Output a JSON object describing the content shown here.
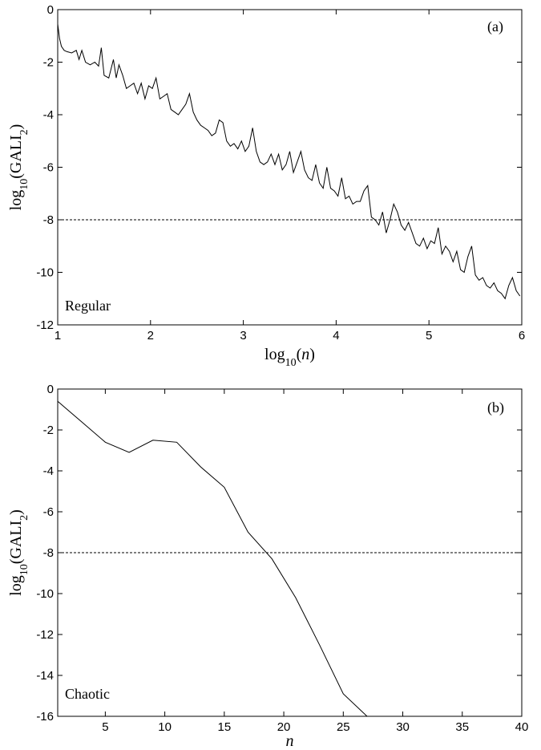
{
  "chart_data": [
    {
      "type": "line",
      "panel_label": "(a)",
      "annotation": "Regular",
      "xlabel_parts": [
        "log",
        "10",
        "(",
        "n",
        ")"
      ],
      "ylabel_parts": [
        "log",
        "10",
        "(GALI",
        "2",
        ")"
      ],
      "xlim": [
        1,
        6
      ],
      "ylim": [
        -12,
        0
      ],
      "x_ticks": [
        1,
        2,
        3,
        4,
        5,
        6
      ],
      "y_ticks": [
        0,
        -2,
        -4,
        -6,
        -8,
        -10,
        -12
      ],
      "x_tick_labels": [
        "1",
        "2",
        "3",
        "4",
        "5",
        "6"
      ],
      "y_tick_labels": [
        "0",
        "-2",
        "-4",
        "-6",
        "-8",
        "-10",
        "-12"
      ],
      "threshold": -8,
      "grid": false,
      "series": [
        {
          "x": [
            1.0,
            1.02,
            1.04,
            1.07,
            1.1,
            1.15,
            1.2,
            1.23,
            1.26,
            1.3,
            1.35,
            1.4,
            1.44,
            1.47,
            1.5,
            1.55,
            1.6,
            1.63,
            1.66,
            1.7,
            1.74,
            1.78,
            1.82,
            1.86,
            1.9,
            1.94,
            1.98,
            2.02,
            2.06,
            2.1,
            2.14,
            2.18,
            2.22,
            2.26,
            2.3,
            2.34,
            2.38,
            2.42,
            2.46,
            2.5,
            2.54,
            2.58,
            2.62,
            2.66,
            2.7,
            2.74,
            2.78,
            2.82,
            2.86,
            2.9,
            2.94,
            2.98,
            3.02,
            3.06,
            3.1,
            3.14,
            3.18,
            3.22,
            3.26,
            3.3,
            3.34,
            3.38,
            3.42,
            3.46,
            3.5,
            3.54,
            3.58,
            3.62,
            3.66,
            3.7,
            3.74,
            3.78,
            3.82,
            3.86,
            3.9,
            3.94,
            3.98,
            4.02,
            4.06,
            4.1,
            4.14,
            4.18,
            4.22,
            4.26,
            4.3,
            4.34,
            4.38,
            4.42,
            4.46,
            4.5,
            4.54,
            4.58,
            4.62,
            4.66,
            4.7,
            4.74,
            4.78,
            4.82,
            4.86,
            4.9,
            4.94,
            4.98,
            5.02,
            5.06,
            5.1,
            5.14,
            5.18,
            5.22,
            5.26,
            5.3,
            5.34,
            5.38,
            5.42,
            5.46,
            5.5,
            5.54,
            5.58,
            5.62,
            5.66,
            5.7,
            5.74,
            5.78,
            5.82,
            5.86,
            5.9,
            5.94,
            5.98
          ],
          "y": [
            -0.55,
            -1.1,
            -1.4,
            -1.55,
            -1.6,
            -1.65,
            -1.55,
            -1.9,
            -1.55,
            -2.0,
            -2.1,
            -2.0,
            -2.15,
            -1.45,
            -2.5,
            -2.6,
            -1.9,
            -2.6,
            -2.1,
            -2.5,
            -3.0,
            -2.9,
            -2.8,
            -3.2,
            -2.8,
            -3.4,
            -2.9,
            -3.0,
            -2.6,
            -3.4,
            -3.3,
            -3.2,
            -3.8,
            -3.9,
            -4.0,
            -3.8,
            -3.6,
            -3.2,
            -3.9,
            -4.2,
            -4.4,
            -4.5,
            -4.6,
            -4.8,
            -4.7,
            -4.2,
            -4.3,
            -5.0,
            -5.2,
            -5.1,
            -5.3,
            -5.0,
            -5.4,
            -5.2,
            -4.5,
            -5.4,
            -5.8,
            -5.9,
            -5.8,
            -5.5,
            -5.9,
            -5.5,
            -6.1,
            -5.9,
            -5.4,
            -6.2,
            -5.8,
            -5.4,
            -6.1,
            -6.4,
            -6.5,
            -5.9,
            -6.6,
            -6.8,
            -6.0,
            -6.8,
            -6.9,
            -7.1,
            -6.4,
            -7.2,
            -7.1,
            -7.4,
            -7.3,
            -7.3,
            -6.9,
            -6.7,
            -7.9,
            -8.0,
            -8.2,
            -7.7,
            -8.5,
            -8.0,
            -7.4,
            -7.7,
            -8.2,
            -8.4,
            -8.1,
            -8.5,
            -8.9,
            -9.0,
            -8.7,
            -9.1,
            -8.8,
            -8.9,
            -8.3,
            -9.3,
            -9.0,
            -9.2,
            -9.6,
            -9.2,
            -9.9,
            -10.0,
            -9.4,
            -9.0,
            -10.1,
            -10.3,
            -10.2,
            -10.5,
            -10.6,
            -10.4,
            -10.7,
            -10.8,
            -11.0,
            -10.5,
            -10.2,
            -10.7,
            -10.9
          ]
        }
      ]
    },
    {
      "type": "line",
      "panel_label": "(b)",
      "annotation": "Chaotic",
      "xlabel_parts": [
        "n"
      ],
      "ylabel_parts": [
        "log",
        "10",
        "(GALI",
        "2",
        ")"
      ],
      "xlim": [
        1,
        40
      ],
      "ylim": [
        -16,
        0
      ],
      "x_ticks": [
        5,
        10,
        15,
        20,
        25,
        30,
        35,
        40
      ],
      "y_ticks": [
        0,
        -2,
        -4,
        -6,
        -8,
        -10,
        -12,
        -14,
        -16
      ],
      "x_tick_labels": [
        "5",
        "10",
        "15",
        "20",
        "25",
        "30",
        "35",
        "40"
      ],
      "y_tick_labels": [
        "0",
        "-2",
        "-4",
        "-6",
        "-8",
        "-10",
        "-12",
        "-14",
        "-16"
      ],
      "threshold": -8,
      "grid": false,
      "series": [
        {
          "x": [
            1,
            3,
            5,
            7,
            9,
            11,
            13,
            15,
            17,
            19,
            21,
            23,
            25,
            27
          ],
          "y": [
            -0.6,
            -1.6,
            -2.6,
            -3.1,
            -2.5,
            -2.6,
            -3.8,
            -4.8,
            -7.0,
            -8.3,
            -10.2,
            -12.5,
            -14.9,
            -16.0
          ]
        }
      ]
    }
  ]
}
